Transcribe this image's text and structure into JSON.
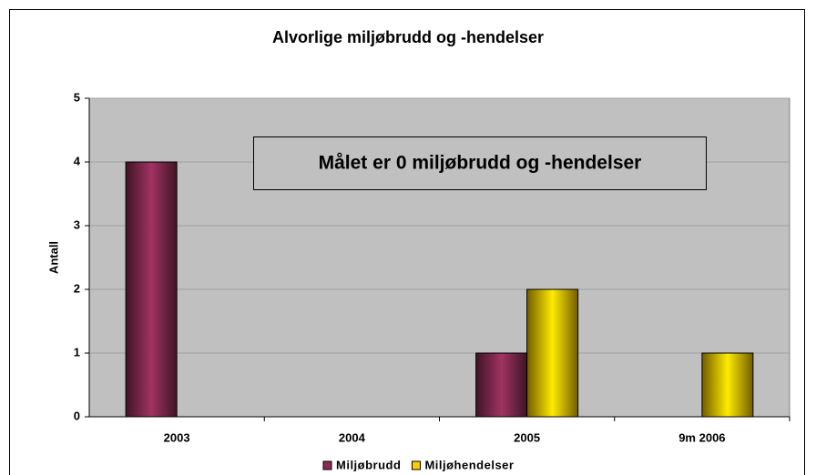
{
  "chart_data": {
    "type": "bar",
    "title": "Alvorlige miljøbrudd og -hendelser",
    "categories": [
      "2003",
      "2004",
      "2005",
      "9m 2006"
    ],
    "series": [
      {
        "name": "Miljøbrudd",
        "color": "#8b2c55",
        "values": [
          4,
          0,
          1,
          0
        ]
      },
      {
        "name": "Miljøhendelser",
        "color": "#ffcc00",
        "values": [
          0,
          0,
          2,
          1
        ]
      }
    ],
    "ylabel": "Antall",
    "ylim": [
      0,
      5
    ],
    "yticks": [
      0,
      1,
      2,
      3,
      4,
      5
    ],
    "grid": true,
    "annotation": "Målet er 0 miljøbrudd og -hendelser",
    "legend": "bottom"
  }
}
